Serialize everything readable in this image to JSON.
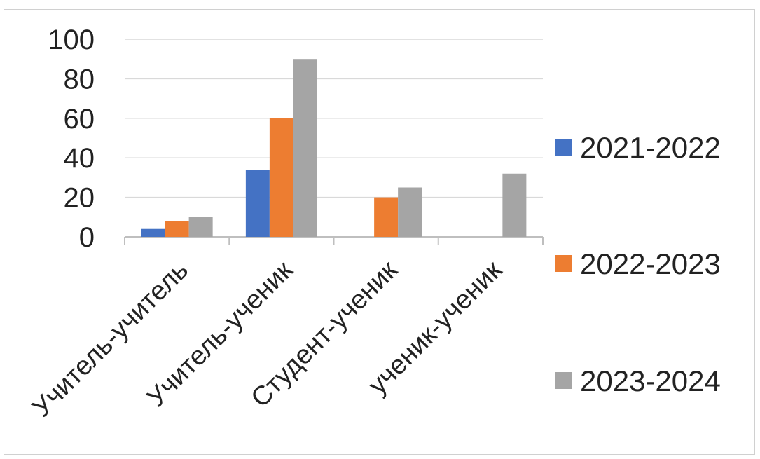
{
  "chart_data": {
    "type": "bar",
    "categories": [
      "Учитель-учитель",
      "Учитель-ученик",
      "Студент-ученик",
      "ученик-ученик"
    ],
    "series": [
      {
        "name": "2021-2022",
        "color": "#4472c4",
        "values": [
          4,
          34,
          0,
          0
        ]
      },
      {
        "name": "2022-2023",
        "color": "#ed7d31",
        "values": [
          8,
          60,
          20,
          0
        ]
      },
      {
        "name": "2023-2024",
        "color": "#a5a5a5",
        "values": [
          10,
          90,
          25,
          32
        ]
      }
    ],
    "yticks": [
      "0",
      "20",
      "40",
      "60",
      "80",
      "100"
    ],
    "ylim": [
      0,
      100
    ],
    "title": "",
    "xlabel": "",
    "ylabel": "",
    "grid": true,
    "legend_position": "right",
    "gridline_color": "#d9d9d9"
  }
}
